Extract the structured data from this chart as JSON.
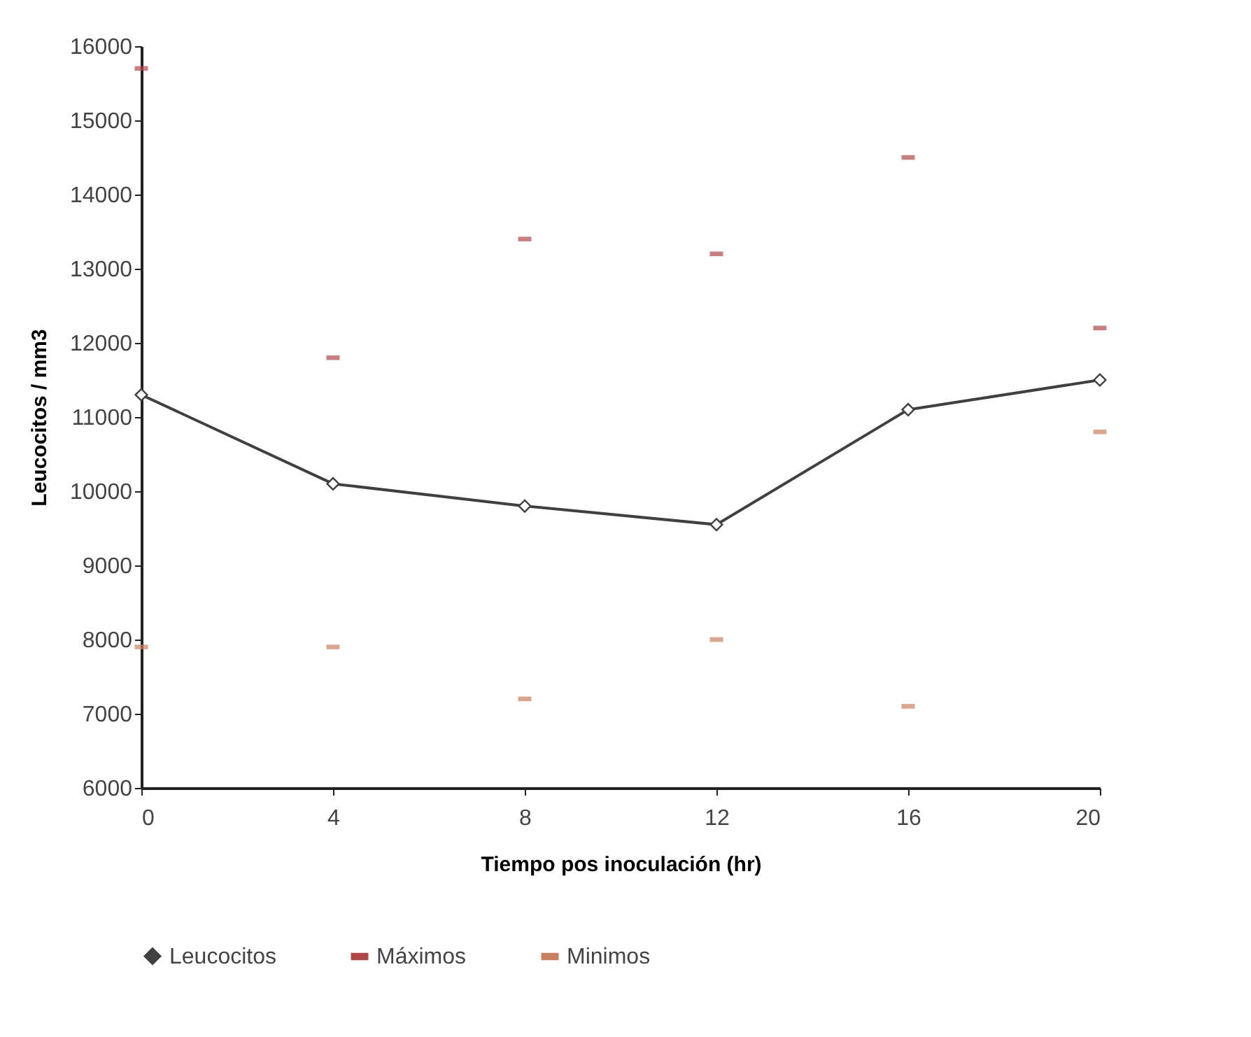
{
  "chart_data": {
    "type": "line",
    "xlabel": "Tiempo pos inoculación (hr)",
    "ylabel": "Leucocitos / mm3",
    "x": [
      0,
      4,
      8,
      12,
      16,
      20
    ],
    "series": [
      {
        "name": "Leucocitos",
        "color": "#404040",
        "marker": "diamond",
        "values": [
          11300,
          10100,
          9800,
          9550,
          11100,
          11500
        ]
      },
      {
        "name": "Máximos",
        "type": "scatter",
        "color": "#b04848",
        "values": [
          15700,
          11800,
          13400,
          13200,
          14500,
          12200
        ]
      },
      {
        "name": "Minimos",
        "type": "scatter",
        "color": "#c98060",
        "values": [
          7900,
          7900,
          7200,
          8000,
          7100,
          10800
        ]
      }
    ],
    "xlim": [
      0,
      20
    ],
    "xticks": [
      0,
      4,
      8,
      12,
      16,
      20
    ],
    "ylim": [
      6000,
      16000
    ],
    "yticks": [
      6000,
      7000,
      8000,
      9000,
      10000,
      11000,
      12000,
      13000,
      14000,
      15000,
      16000
    ],
    "grid": false,
    "legend": "bottom"
  }
}
